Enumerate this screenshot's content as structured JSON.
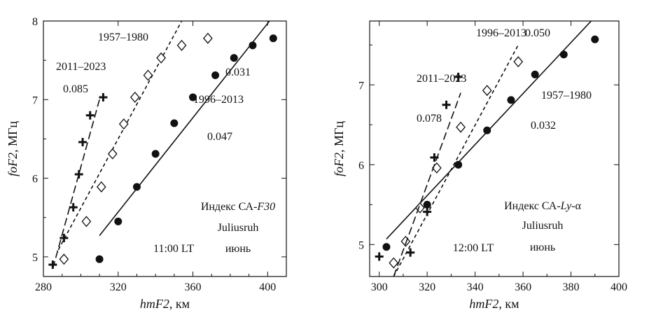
{
  "chart_data": [
    {
      "type": "scatter",
      "title": "",
      "xlabel_italic": "hmF2",
      "xlabel_unit": ", км",
      "ylabel_italic": "foF2",
      "ylabel_unit": ", МГц",
      "xlim": [
        280,
        410
      ],
      "ylim": [
        4.75,
        8.0
      ],
      "xticks": [
        280,
        320,
        360,
        400
      ],
      "yticks": [
        5,
        6,
        7,
        8
      ],
      "index_prefix": "Индекс СА-",
      "index_italic": "F30",
      "station": "Juliusruh",
      "time": "11:00 LT",
      "month": "июнь",
      "series": [
        {
          "name": "1957–1980",
          "marker": "circle",
          "slope": "0.031",
          "points": [
            [
              310,
              4.97
            ],
            [
              320,
              5.45
            ],
            [
              330,
              5.89
            ],
            [
              340,
              6.31
            ],
            [
              350,
              6.7
            ],
            [
              360,
              7.03
            ],
            [
              372,
              7.31
            ],
            [
              382,
              7.53
            ],
            [
              392,
              7.69
            ],
            [
              403,
              7.78
            ]
          ],
          "fit": {
            "style": "solid",
            "from": [
              310,
              5.27
            ],
            "to": [
              403,
              8.06
            ]
          }
        },
        {
          "name": "1996–2013",
          "marker": "diamond",
          "slope": "0.047",
          "points": [
            [
              291,
              4.97
            ],
            [
              303,
              5.45
            ],
            [
              311,
              5.89
            ],
            [
              317,
              6.31
            ],
            [
              323,
              6.69
            ],
            [
              329,
              7.03
            ],
            [
              336,
              7.31
            ],
            [
              343,
              7.53
            ],
            [
              354,
              7.69
            ],
            [
              368,
              7.78
            ]
          ],
          "fit": {
            "style": "dashed",
            "from": [
              288,
              5.09
            ],
            "to": [
              354,
              8.0
            ]
          }
        },
        {
          "name": "2011–2023",
          "marker": "plus",
          "slope": "0.085",
          "points": [
            [
              285,
              4.9
            ],
            [
              291,
              5.24
            ],
            [
              296,
              5.63
            ],
            [
              299,
              6.05
            ],
            [
              301,
              6.46
            ],
            [
              305,
              6.8
            ],
            [
              312,
              7.03
            ]
          ],
          "fit": {
            "style": "longdash",
            "from": [
              285,
              4.85
            ],
            "to": [
              310,
              7.0
            ]
          }
        }
      ]
    },
    {
      "type": "scatter",
      "title": "",
      "xlabel_italic": "hmF2",
      "xlabel_unit": ", км",
      "ylabel_italic": "foF2",
      "ylabel_unit": ", МГц",
      "xlim": [
        296,
        400
      ],
      "ylim": [
        4.6,
        7.8
      ],
      "xticks": [
        300,
        320,
        340,
        360,
        380,
        400
      ],
      "yticks": [
        5,
        6,
        7
      ],
      "index_prefix": "Индекс СА-",
      "index_italic": "Ly",
      "index_suffix": "-α",
      "station": "Juliusruh",
      "time": "12:00 LT",
      "month": "июнь",
      "series": [
        {
          "name": "1957–1980",
          "marker": "circle",
          "slope": "0.032",
          "points": [
            [
              303,
              4.97
            ],
            [
              320,
              5.5
            ],
            [
              333,
              6.0
            ],
            [
              345,
              6.43
            ],
            [
              355,
              6.81
            ],
            [
              365,
              7.13
            ],
            [
              377,
              7.38
            ],
            [
              390,
              7.57
            ]
          ],
          "fit": {
            "style": "solid",
            "from": [
              303,
              5.07
            ],
            "to": [
              390,
              7.85
            ]
          }
        },
        {
          "name": "1996–2013",
          "marker": "diamond",
          "slope": "0.050",
          "points": [
            [
              306,
              4.77
            ],
            [
              311,
              5.04
            ],
            [
              317,
              5.46
            ],
            [
              324,
              5.96
            ],
            [
              334,
              6.47
            ],
            [
              345,
              6.93
            ],
            [
              358,
              7.29
            ]
          ],
          "fit": {
            "style": "dashed",
            "from": [
              306,
              4.6
            ],
            "to": [
              358,
              7.5
            ]
          }
        },
        {
          "name": "2011–2023",
          "marker": "plus",
          "slope": "0.078",
          "points": [
            [
              300,
              4.85
            ],
            [
              313,
              4.9
            ],
            [
              320,
              5.41
            ],
            [
              323,
              6.09
            ],
            [
              328,
              6.75
            ],
            [
              333,
              7.1
            ]
          ],
          "fit": {
            "style": "longdash",
            "from": [
              306,
              4.6
            ],
            "to": [
              334,
              6.9
            ]
          }
        }
      ]
    }
  ]
}
